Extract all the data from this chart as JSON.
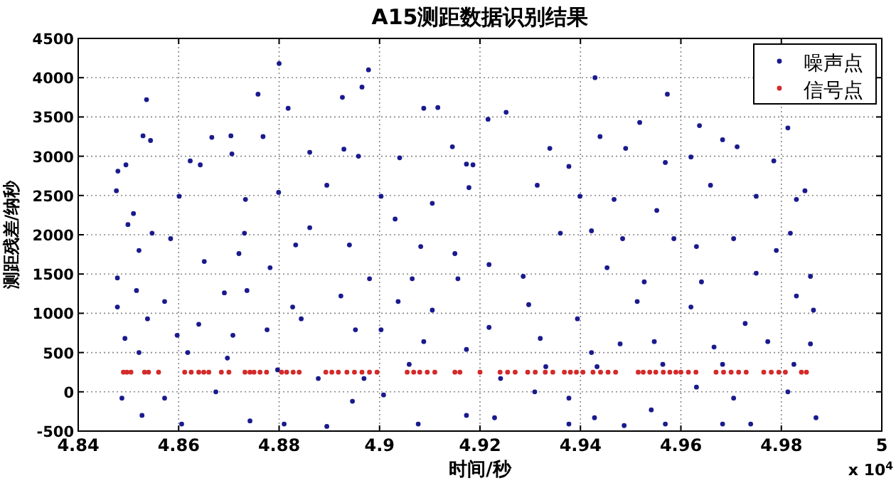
{
  "chart_data": {
    "type": "scatter",
    "title": "A15测距数据识别结果",
    "xlabel": "时间/秒",
    "ylabel": "测距残差/纳秒",
    "annotations": [
      "x 10$^{4}$"
    ],
    "xlim": [
      4.84,
      5
    ],
    "xticks": [
      4.84,
      4.86,
      4.88,
      4.9,
      4.92,
      4.94,
      4.96,
      4.98,
      5
    ],
    "ylim": [
      -500,
      4500
    ],
    "yticks": [
      -500,
      0,
      500,
      1000,
      1500,
      2000,
      2500,
      3000,
      3500,
      4000,
      4500
    ],
    "grid": true,
    "legend": "top right",
    "marker": "circle",
    "series": [
      {
        "name": "噪声点",
        "color": "#1a1a8e",
        "x": [
          4.88,
          4.8978,
          4.9429,
          4.8536,
          4.8758,
          4.9573,
          4.8926,
          4.8965,
          4.8818,
          4.9088,
          4.9116,
          4.9252,
          4.9518,
          4.9216,
          4.9637,
          4.9813,
          4.8529,
          4.8544,
          4.8768,
          4.8704,
          4.8666,
          4.8958,
          4.8929,
          4.9145,
          4.9439,
          4.9683,
          4.9712,
          4.9785,
          4.949,
          4.9339,
          4.8861,
          4.8479,
          4.8495,
          4.8623,
          4.8643,
          4.8706,
          4.904,
          4.9173,
          4.9186,
          4.9377,
          4.9569,
          4.962,
          4.983,
          4.9847,
          4.8476,
          4.851,
          4.8601,
          4.8733,
          4.8799,
          4.8895,
          4.9003,
          4.9105,
          4.9178,
          4.9314,
          4.9399,
          4.9467,
          4.9659,
          4.975,
          4.9818,
          4.9552,
          4.8499,
          4.8547,
          4.8731,
          4.8861,
          4.894,
          4.9031,
          4.9082,
          4.915,
          4.9218,
          4.936,
          4.9422,
          4.9484,
          4.9586,
          4.9631,
          4.9705,
          4.979,
          4.8521,
          4.8584,
          4.8651,
          4.872,
          4.8782,
          4.8833,
          4.898,
          4.9065,
          4.9156,
          4.9286,
          4.9453,
          4.9527,
          4.9641,
          4.975,
          4.9858,
          4.8478,
          4.8516,
          4.8572,
          4.8691,
          4.8736,
          4.8827,
          4.8923,
          4.9037,
          4.9105,
          4.9218,
          4.9297,
          4.9394,
          4.9513,
          4.962,
          4.9728,
          4.983,
          4.9864,
          4.8478,
          4.8493,
          4.8538,
          4.8597,
          4.864,
          4.8708,
          4.8776,
          4.8844,
          4.8952,
          4.9003,
          4.9088,
          4.9173,
          4.932,
          4.9422,
          4.9479,
          4.9547,
          4.9666,
          4.9773,
          4.9858,
          4.8521,
          4.8618,
          4.8697,
          4.8797,
          4.8878,
          4.8969,
          4.9059,
          4.9241,
          4.9331,
          4.9433,
          4.9564,
          4.9683,
          4.9825,
          4.8487,
          4.8527,
          4.8606,
          4.8674,
          4.8742,
          4.881,
          4.8895,
          4.9008,
          4.9077,
          4.9173,
          4.9229,
          4.9309,
          4.9377,
          4.9428,
          4.9487,
          4.9541,
          4.9569,
          4.9683,
          4.9739,
          4.9813,
          4.9869,
          4.8946,
          4.9705,
          4.9631,
          4.8572,
          4.9377
        ],
        "values": [
          4180,
          4100,
          4000,
          3720,
          3790,
          3790,
          3750,
          3880,
          3610,
          3610,
          3620,
          3560,
          3430,
          3470,
          3390,
          3360,
          3260,
          3200,
          3250,
          3260,
          3240,
          3000,
          3090,
          3120,
          3250,
          3210,
          3120,
          2940,
          3100,
          3100,
          3050,
          2810,
          2890,
          2940,
          2890,
          3030,
          2980,
          2900,
          2890,
          2870,
          2920,
          2990,
          2450,
          2560,
          2560,
          2270,
          2490,
          2450,
          2540,
          2630,
          2490,
          2400,
          2600,
          2630,
          2490,
          2450,
          2630,
          2490,
          2020,
          2310,
          2130,
          2020,
          2020,
          2090,
          1870,
          2200,
          1850,
          1760,
          1620,
          2020,
          2050,
          1950,
          1950,
          1850,
          1950,
          1800,
          1800,
          1950,
          1660,
          1760,
          1580,
          1870,
          1440,
          1440,
          1440,
          1470,
          1580,
          1400,
          1400,
          1510,
          1470,
          1450,
          1290,
          1150,
          1260,
          1290,
          1080,
          1220,
          1150,
          1040,
          820,
          1110,
          930,
          1150,
          1080,
          870,
          1220,
          1040,
          1080,
          680,
          930,
          720,
          860,
          720,
          790,
          930,
          790,
          790,
          640,
          540,
          680,
          500,
          610,
          640,
          570,
          640,
          610,
          500,
          500,
          430,
          280,
          170,
          170,
          350,
          170,
          320,
          320,
          350,
          350,
          350,
          -80,
          -300,
          -410,
          0,
          -370,
          -410,
          -440,
          -40,
          -410,
          -300,
          -330,
          0,
          -410,
          -330,
          -430,
          -230,
          -410,
          -410,
          -410,
          0,
          -330,
          -120,
          -80,
          60,
          -80,
          -80
        ]
      },
      {
        "name": "信号点",
        "color": "#d42a2a",
        "x": [
          4.849,
          4.8497,
          4.8505,
          4.8532,
          4.854,
          4.856,
          4.8612,
          4.8625,
          4.864,
          4.865,
          4.866,
          4.8685,
          4.87,
          4.8732,
          4.8742,
          4.875,
          4.8762,
          4.8775,
          4.8805,
          4.8815,
          4.8828,
          4.884,
          4.8893,
          4.8905,
          4.8918,
          4.8935,
          4.895,
          4.8965,
          4.898,
          4.8995,
          4.9055,
          4.9068,
          4.908,
          4.9095,
          4.911,
          4.915,
          4.916,
          4.92,
          4.924,
          4.9255,
          4.927,
          4.9295,
          4.931,
          4.933,
          4.9345,
          4.9368,
          4.938,
          4.9392,
          4.9405,
          4.9425,
          4.944,
          4.9455,
          4.947,
          4.9515,
          4.9525,
          4.9538,
          4.955,
          4.9565,
          4.9578,
          4.959,
          4.96,
          4.9615,
          4.963,
          4.967,
          4.9685,
          4.97,
          4.9715,
          4.973,
          4.9765,
          4.978,
          4.9795,
          4.9808,
          4.984,
          4.985
        ],
        "values": [
          250,
          250,
          250,
          250,
          250,
          250,
          250,
          250,
          250,
          250,
          250,
          250,
          250,
          250,
          250,
          250,
          250,
          250,
          250,
          250,
          250,
          250,
          250,
          250,
          250,
          250,
          250,
          250,
          250,
          250,
          250,
          250,
          250,
          250,
          250,
          250,
          250,
          250,
          250,
          250,
          250,
          250,
          250,
          250,
          250,
          250,
          250,
          250,
          250,
          250,
          250,
          250,
          250,
          250,
          250,
          250,
          250,
          250,
          250,
          250,
          250,
          250,
          250,
          250,
          250,
          250,
          250,
          250,
          250,
          250,
          250,
          250,
          250,
          250
        ]
      }
    ]
  }
}
